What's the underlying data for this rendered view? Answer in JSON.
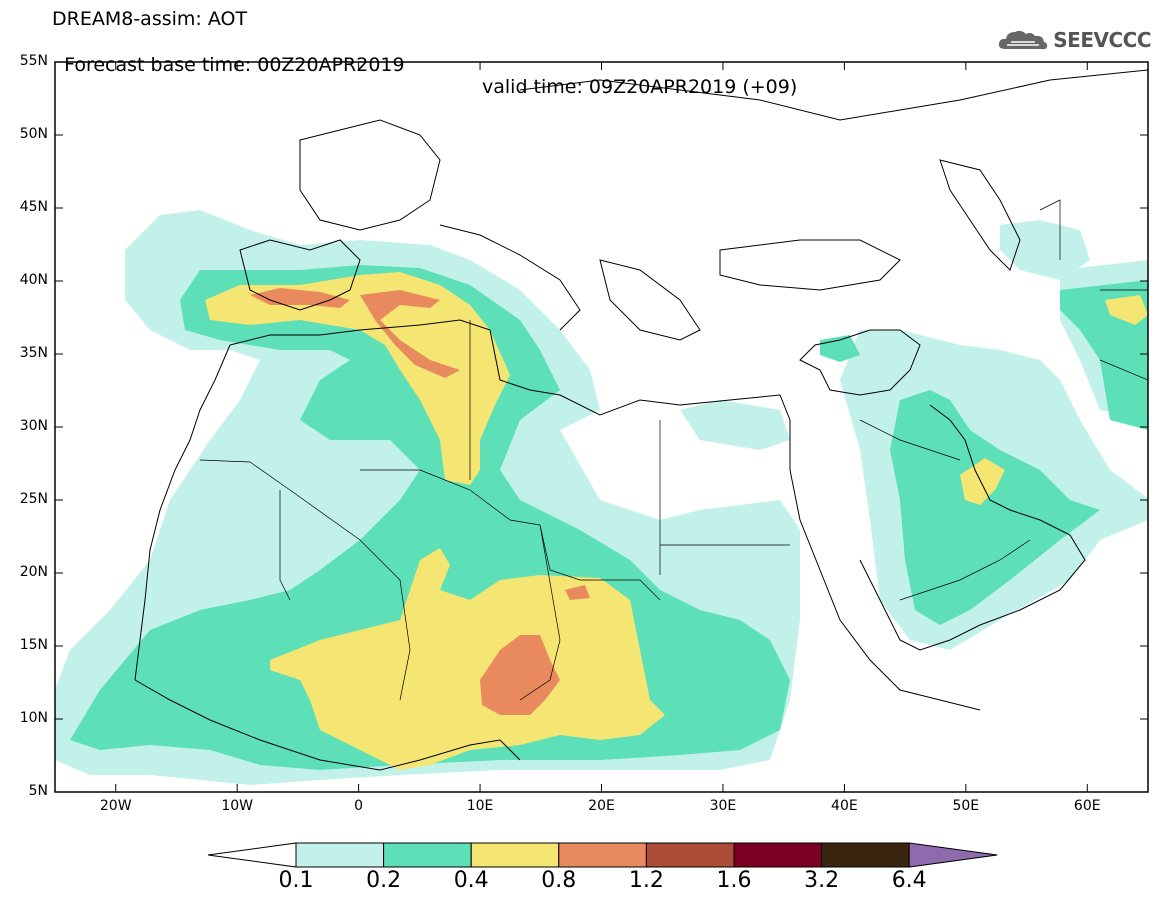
{
  "header": {
    "title": "DREAM8-assim: AOT",
    "base_time": "Forecast base time: 00Z20APR2019",
    "valid_time": "valid time: 09Z20APR2019 (+09)",
    "logo_text": "SEEVCCC"
  },
  "map": {
    "lat_labels": [
      "55N",
      "50N",
      "45N",
      "40N",
      "35N",
      "30N",
      "25N",
      "20N",
      "15N",
      "10N",
      "5N"
    ],
    "lon_labels": [
      "20W",
      "10W",
      "0",
      "10E",
      "20E",
      "30E",
      "40E",
      "50E",
      "60E"
    ],
    "lat_range": [
      5,
      55
    ],
    "lon_range": [
      -25,
      65
    ]
  },
  "colorbar": {
    "labels": [
      "0.1",
      "0.2",
      "0.4",
      "0.8",
      "1.2",
      "1.6",
      "3.2",
      "6.4"
    ],
    "colors": [
      "#ffffff",
      "#c2f1ea",
      "#5de0b7",
      "#f5e572",
      "#e88a5e",
      "#ad4d37",
      "#7c0024",
      "#3a2511",
      "#8d6bad"
    ]
  }
}
